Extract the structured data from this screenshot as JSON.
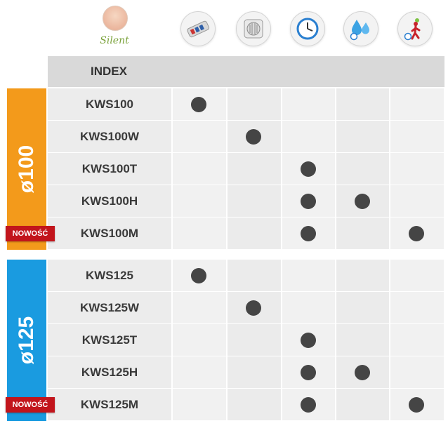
{
  "brand": {
    "logo_text": "Silent"
  },
  "header": {
    "index_label": "INDEX"
  },
  "feature_icons": [
    "remote-icon",
    "fan-icon",
    "timer-icon",
    "humidity-icon",
    "motion-sensor-icon"
  ],
  "colors": {
    "orange": "#f39a1b",
    "blue": "#1a9be0",
    "red": "#c2151c",
    "dot": "#454545"
  },
  "groups": [
    {
      "label": "ø100",
      "rows": [
        {
          "index": "KWS100",
          "features": [
            true,
            false,
            false,
            false,
            false
          ],
          "badge": ""
        },
        {
          "index": "KWS100W",
          "features": [
            false,
            true,
            false,
            false,
            false
          ],
          "badge": ""
        },
        {
          "index": "KWS100T",
          "features": [
            false,
            false,
            true,
            false,
            false
          ],
          "badge": ""
        },
        {
          "index": "KWS100H",
          "features": [
            false,
            false,
            true,
            true,
            false
          ],
          "badge": ""
        },
        {
          "index": "KWS100M",
          "features": [
            false,
            false,
            true,
            false,
            true
          ],
          "badge": "NOWOŚĆ"
        }
      ]
    },
    {
      "label": "ø125",
      "rows": [
        {
          "index": "KWS125",
          "features": [
            true,
            false,
            false,
            false,
            false
          ],
          "badge": ""
        },
        {
          "index": "KWS125W",
          "features": [
            false,
            true,
            false,
            false,
            false
          ],
          "badge": ""
        },
        {
          "index": "KWS125T",
          "features": [
            false,
            false,
            true,
            false,
            false
          ],
          "badge": ""
        },
        {
          "index": "KWS125H",
          "features": [
            false,
            false,
            true,
            true,
            false
          ],
          "badge": ""
        },
        {
          "index": "KWS125M",
          "features": [
            false,
            false,
            true,
            false,
            true
          ],
          "badge": "NOWOŚĆ"
        }
      ]
    }
  ]
}
